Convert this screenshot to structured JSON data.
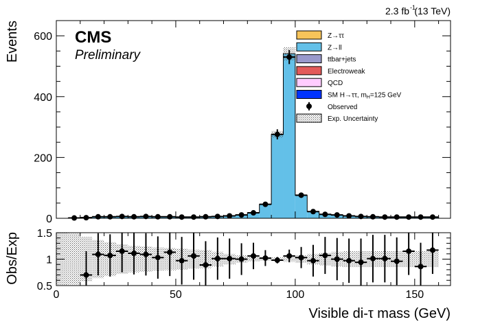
{
  "lumi_label": "2.3 fb",
  "lumi_exp": "-1",
  "lumi_energy": "(13 TeV)",
  "experiment": "CMS",
  "status": "Preliminary",
  "legend": [
    {
      "label": "Z→ττ",
      "kind": "fill",
      "color": "#f7c45a"
    },
    {
      "label": "Z→ll",
      "kind": "fill",
      "color": "#63c0e8"
    },
    {
      "label": "ttbar+jets",
      "kind": "fill",
      "color": "#9999cc"
    },
    {
      "label": "Electroweak",
      "kind": "fill",
      "color": "#e35a5a"
    },
    {
      "label": "QCD",
      "kind": "fill",
      "color": "#ffccff"
    },
    {
      "label": "SM H→ττ, m",
      "sub": "H",
      "suffix": "=125 GeV",
      "kind": "fill",
      "color": "#0033ff"
    },
    {
      "label": "Observed",
      "kind": "marker",
      "color": "#000000"
    },
    {
      "label": "Exp. Uncertainty",
      "kind": "hatch",
      "color": "#888888"
    }
  ],
  "chart_data": [
    {
      "type": "bar",
      "xlabel": "Visible di-τ mass (GeV)",
      "ylabel": "Events",
      "xlim": [
        0,
        165
      ],
      "ylim": [
        0,
        650
      ],
      "x_ticks": [
        0,
        50,
        100,
        150
      ],
      "y_ticks": [
        0,
        200,
        400,
        600
      ],
      "bin_edges": [
        5,
        10,
        15,
        20,
        25,
        30,
        35,
        40,
        45,
        50,
        55,
        60,
        65,
        70,
        75,
        80,
        85,
        90,
        95,
        100,
        105,
        110,
        115,
        120,
        125,
        130,
        135,
        140,
        145,
        150,
        155,
        160
      ],
      "series": [
        {
          "name": "Z→ll",
          "color": "#63c0e8",
          "values": [
            1,
            3,
            4,
            5,
            5,
            5,
            5,
            5,
            5,
            4,
            4,
            5,
            6,
            8,
            11,
            18,
            45,
            275,
            540,
            75,
            22,
            13,
            10,
            8,
            6,
            5,
            4,
            4,
            4,
            4,
            4
          ]
        },
        {
          "name": "Electroweak",
          "color": "#e35a5a",
          "values": [
            0.5,
            0.5,
            0.5,
            0.5,
            0.5,
            0.5,
            0.5,
            0.5,
            0.5,
            0.5,
            0.5,
            0.5,
            0.5,
            0.5,
            0.5,
            0.5,
            1,
            1,
            1,
            1,
            0.5,
            0.5,
            0.5,
            0.5,
            0.5,
            0.5,
            0.5,
            0.5,
            0.5,
            0.5,
            0.5
          ]
        }
      ],
      "observed": {
        "name": "Observed",
        "x": [
          7.5,
          12.5,
          17.5,
          22.5,
          27.5,
          32.5,
          37.5,
          42.5,
          47.5,
          52.5,
          57.5,
          62.5,
          67.5,
          72.5,
          77.5,
          82.5,
          87.5,
          92.5,
          97.5,
          102.5,
          107.5,
          112.5,
          117.5,
          122.5,
          127.5,
          132.5,
          137.5,
          142.5,
          147.5,
          152.5,
          157.5
        ],
        "y": [
          1,
          2,
          5,
          5,
          6,
          5,
          6,
          5,
          5,
          4,
          4,
          5,
          6,
          8,
          11,
          18,
          46,
          276,
          530,
          76,
          22,
          13,
          11,
          8,
          6,
          5,
          4,
          4,
          4,
          4,
          4
        ],
        "err": [
          1,
          1.5,
          2.2,
          2.2,
          2.4,
          2.2,
          2.4,
          2.2,
          2.2,
          2,
          2,
          2.2,
          2.4,
          2.8,
          3.3,
          4.2,
          6.8,
          16.6,
          23,
          8.7,
          4.7,
          3.6,
          3.3,
          2.8,
          2.4,
          2.2,
          2,
          2,
          2,
          2,
          2
        ]
      },
      "uncertainty": {
        "name": "Exp. Uncertainty",
        "rel": 0.04
      }
    },
    {
      "type": "scatter",
      "xlabel": "Visible di-τ mass (GeV)",
      "ylabel": "Obs/Exp",
      "xlim": [
        0,
        165
      ],
      "ylim": [
        0.5,
        1.5
      ],
      "x_ticks": [
        0,
        50,
        100,
        150
      ],
      "y_ticks": [
        0.5,
        1,
        1.5
      ],
      "x": [
        12.5,
        17.5,
        22.5,
        27.5,
        32.5,
        37.5,
        42.5,
        47.5,
        52.5,
        57.5,
        62.5,
        67.5,
        72.5,
        77.5,
        82.5,
        87.5,
        92.5,
        97.5,
        102.5,
        107.5,
        112.5,
        117.5,
        122.5,
        127.5,
        132.5,
        137.5,
        142.5,
        147.5,
        152.5,
        157.5
      ],
      "y": [
        0.7,
        1.09,
        1.07,
        1.15,
        1.11,
        1.09,
        1.03,
        1.13,
        0.97,
        1.06,
        0.89,
        1.01,
        1.01,
        1.0,
        1.06,
        1.02,
        0.98,
        1.06,
        1.03,
        0.97,
        1.07,
        1.0,
        0.97,
        0.94,
        1.01,
        1.01,
        0.96,
        1.15,
        0.86,
        1.17
      ],
      "err": [
        0.45,
        0.4,
        0.4,
        0.4,
        0.4,
        0.4,
        0.4,
        0.45,
        0.45,
        0.45,
        0.45,
        0.4,
        0.38,
        0.3,
        0.25,
        0.15,
        0.06,
        0.12,
        0.2,
        0.3,
        0.35,
        0.4,
        0.42,
        0.45,
        0.45,
        0.45,
        0.45,
        0.45,
        0.45,
        0.45
      ],
      "band_half_width": [
        0.48,
        0.42,
        0.36,
        0.32,
        0.28,
        0.25,
        0.24,
        0.22,
        0.21,
        0.2,
        0.18,
        0.17,
        0.14,
        0.1,
        0.07,
        0.04,
        0.03,
        0.03,
        0.05,
        0.07,
        0.1,
        0.12,
        0.14,
        0.15,
        0.15,
        0.15,
        0.15,
        0.15,
        0.15,
        0.15,
        0.15
      ]
    }
  ]
}
